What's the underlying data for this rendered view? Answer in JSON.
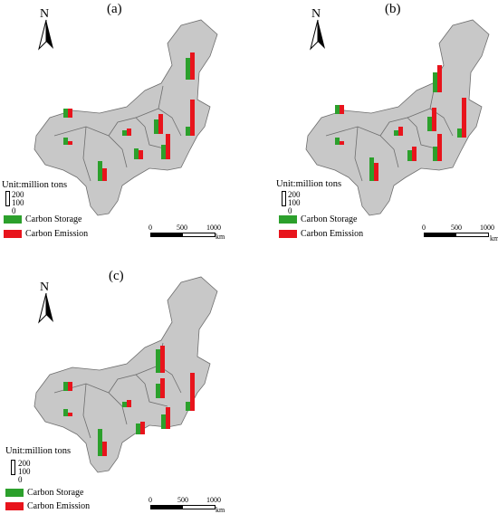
{
  "panels": [
    {
      "label": "(a)",
      "north_letter": "N",
      "unit_text": "Unit:million tons",
      "scale_ticks": [
        "200",
        "100",
        "0"
      ],
      "legend": {
        "storage": "Carbon Storage",
        "emission": "Carbon Emission"
      },
      "scalebar": {
        "t0": "0",
        "t1": "500",
        "t2": "1000",
        "unit": "km"
      }
    },
    {
      "label": "(b)",
      "north_letter": "N",
      "unit_text": "Unit:million tons",
      "scale_ticks": [
        "200",
        "100",
        "0"
      ],
      "legend": {
        "storage": "Carbon Storage",
        "emission": "Carbon Emission"
      },
      "scalebar": {
        "t0": "0",
        "t1": "500",
        "t2": "1000",
        "unit": "km"
      }
    },
    {
      "label": "(c)",
      "north_letter": "N",
      "unit_text": "Unit:million tons",
      "scale_ticks": [
        "200",
        "100",
        "0"
      ],
      "legend": {
        "storage": "Carbon Storage",
        "emission": "Carbon Emission"
      },
      "scalebar": {
        "t0": "0",
        "t1": "500",
        "t2": "1000",
        "unit": "km"
      }
    }
  ],
  "colors": {
    "storage": "#2ca02c",
    "emission": "#e8141c",
    "land": "#c8c8c8",
    "border": "#6e6e6e"
  }
}
